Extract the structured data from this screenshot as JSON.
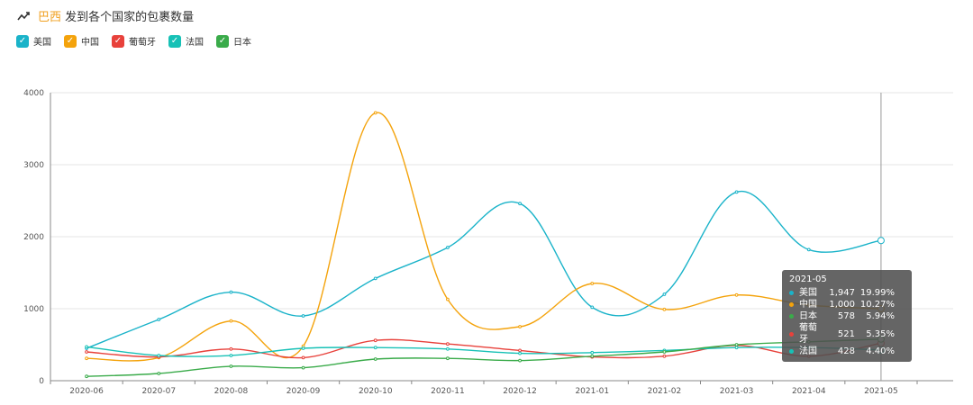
{
  "header": {
    "accent": "巴西",
    "title_rest": "发到各个国家的包裹数量"
  },
  "legend": [
    {
      "label": "美国",
      "color": "#1ab3c9"
    },
    {
      "label": "中国",
      "color": "#f4a30c"
    },
    {
      "label": "葡萄牙",
      "color": "#e8413b"
    },
    {
      "label": "法国",
      "color": "#17c1b6"
    },
    {
      "label": "日本",
      "color": "#3aab4a"
    }
  ],
  "tooltip": {
    "title": "2021-05",
    "rows": [
      {
        "name": "美国",
        "value": "1,947",
        "pct": "19.99%",
        "color": "#1ab3c9"
      },
      {
        "name": "中国",
        "value": "1,000",
        "pct": "10.27%",
        "color": "#f4a30c"
      },
      {
        "name": "日本",
        "value": "578",
        "pct": "5.94%",
        "color": "#3aab4a"
      },
      {
        "name": "葡萄牙",
        "value": "521",
        "pct": "5.35%",
        "color": "#e8413b"
      },
      {
        "name": "法国",
        "value": "428",
        "pct": "4.40%",
        "color": "#17c1b6"
      }
    ]
  },
  "chart_data": {
    "type": "line",
    "categories": [
      "2020-06",
      "2020-07",
      "2020-08",
      "2020-09",
      "2020-10",
      "2020-11",
      "2020-12",
      "2021-01",
      "2021-02",
      "2021-03",
      "2021-04",
      "2021-05"
    ],
    "ylim": [
      0,
      4000
    ],
    "yticks": [
      0,
      1000,
      2000,
      3000,
      4000
    ],
    "grid": true,
    "series": [
      {
        "name": "美国",
        "color": "#1ab3c9",
        "values": [
          450,
          850,
          1230,
          900,
          1420,
          1850,
          2460,
          1020,
          1200,
          2620,
          1820,
          1947
        ]
      },
      {
        "name": "中国",
        "color": "#f4a30c",
        "values": [
          310,
          320,
          830,
          480,
          3720,
          1130,
          750,
          1350,
          990,
          1190,
          1050,
          1000
        ]
      },
      {
        "name": "葡萄牙",
        "color": "#e8413b",
        "values": [
          400,
          330,
          440,
          320,
          560,
          510,
          420,
          330,
          340,
          490,
          340,
          521
        ]
      },
      {
        "name": "法国",
        "color": "#17c1b6",
        "values": [
          470,
          350,
          350,
          450,
          460,
          440,
          380,
          390,
          420,
          460,
          460,
          428
        ]
      },
      {
        "name": "日本",
        "color": "#3aab4a",
        "values": [
          60,
          100,
          200,
          180,
          300,
          310,
          280,
          340,
          400,
          500,
          540,
          578
        ]
      }
    ]
  }
}
